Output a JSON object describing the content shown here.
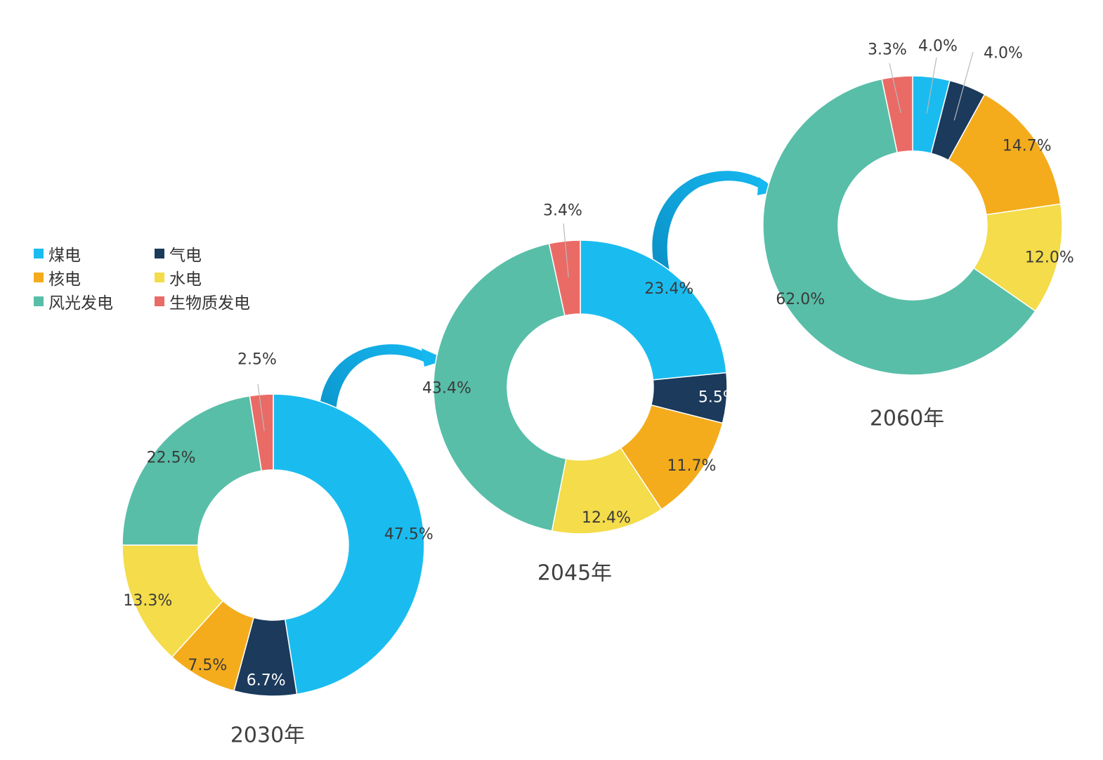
{
  "legend": [
    {
      "key": "coal",
      "label": "煤电",
      "color": "#1ABCF0"
    },
    {
      "key": "gas",
      "label": "气电",
      "color": "#1B3A5C"
    },
    {
      "key": "nuclear",
      "label": "核电",
      "color": "#F4AC1C"
    },
    {
      "key": "hydro",
      "label": "水电",
      "color": "#F4DC4A"
    },
    {
      "key": "wind_solar",
      "label": "风光发电",
      "color": "#58BEA8"
    },
    {
      "key": "biomass",
      "label": "生物质发电",
      "color": "#EA6B66"
    }
  ],
  "chart_data": [
    {
      "type": "pie",
      "title": "2030年",
      "categories": [
        "煤电",
        "气电",
        "核电",
        "水电",
        "风光发电",
        "生物质发电"
      ],
      "values": [
        47.5,
        6.7,
        7.5,
        13.3,
        22.5,
        2.5
      ],
      "labels": [
        "47.5%",
        "6.7%",
        "7.5%",
        "13.3%",
        "22.5%",
        "2.5%"
      ]
    },
    {
      "type": "pie",
      "title": "2045年",
      "categories": [
        "煤电",
        "气电",
        "核电",
        "水电",
        "风光发电",
        "生物质发电"
      ],
      "values": [
        23.4,
        5.5,
        11.7,
        12.4,
        43.4,
        3.4
      ],
      "labels": [
        "23.4%",
        "5.5%",
        "11.7%",
        "12.4%",
        "43.4%",
        "3.4%"
      ]
    },
    {
      "type": "pie",
      "title": "2060年",
      "categories": [
        "煤电",
        "气电",
        "核电",
        "水电",
        "风光发电",
        "生物质发电"
      ],
      "values": [
        4.0,
        4.0,
        14.7,
        12.0,
        62.0,
        3.3
      ],
      "labels": [
        "4.0%",
        "4.0%",
        "14.7%",
        "12.0%",
        "62.0%",
        "3.3%"
      ]
    }
  ]
}
